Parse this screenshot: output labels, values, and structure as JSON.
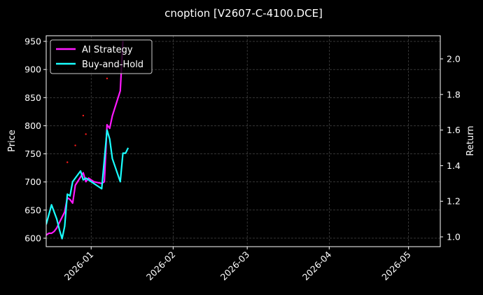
{
  "chart_data": {
    "type": "line",
    "title": "cnoption [V2607-C-4100.DCE]",
    "xlabel": "",
    "ylabel_left": "Price",
    "ylabel_right": "Return",
    "x_range": [
      "2025-12-15",
      "2026-05-13"
    ],
    "x_ticks": [
      "2026-01",
      "2026-02",
      "2026-03",
      "2026-04",
      "2026-05"
    ],
    "y_left": {
      "range": [
        585,
        960
      ],
      "ticks": [
        600,
        650,
        700,
        750,
        800,
        850,
        900,
        950
      ]
    },
    "y_right": {
      "range": [
        0.945,
        2.13
      ],
      "ticks": [
        1.0,
        1.2,
        1.4,
        1.6,
        1.8,
        2.0
      ]
    },
    "grid": true,
    "legend": "top-left",
    "series": [
      {
        "name": "AI Strategy",
        "axis": "right",
        "color": "#ff19ff",
        "points": [
          [
            "2025-12-15",
            1.01
          ],
          [
            "2025-12-16",
            1.02
          ],
          [
            "2025-12-17",
            1.02
          ],
          [
            "2025-12-18",
            1.03
          ],
          [
            "2025-12-19",
            1.05
          ],
          [
            "2025-12-22",
            1.14
          ],
          [
            "2025-12-23",
            1.22
          ],
          [
            "2025-12-24",
            1.21
          ],
          [
            "2025-12-25",
            1.19
          ],
          [
            "2025-12-26",
            1.29
          ],
          [
            "2025-12-29",
            1.36
          ],
          [
            "2025-12-30",
            1.31
          ],
          [
            "2025-12-31",
            1.33
          ],
          [
            "2026-01-02",
            1.31
          ],
          [
            "2026-01-05",
            1.3
          ],
          [
            "2026-01-06",
            1.31
          ],
          [
            "2026-01-07",
            1.63
          ],
          [
            "2026-01-08",
            1.61
          ],
          [
            "2026-01-09",
            1.68
          ],
          [
            "2026-01-12",
            1.82
          ],
          [
            "2026-01-13",
            2.1
          ]
        ]
      },
      {
        "name": "Buy-and-Hold",
        "axis": "right",
        "color": "#19ffff",
        "points": [
          [
            "2025-12-15",
            1.07
          ],
          [
            "2025-12-17",
            1.18
          ],
          [
            "2025-12-19",
            1.1
          ],
          [
            "2025-12-20",
            1.04
          ],
          [
            "2025-12-21",
            0.99
          ],
          [
            "2025-12-22",
            1.06
          ],
          [
            "2025-12-23",
            1.24
          ],
          [
            "2025-12-24",
            1.23
          ],
          [
            "2025-12-25",
            1.31
          ],
          [
            "2025-12-28",
            1.37
          ],
          [
            "2025-12-29",
            1.32
          ],
          [
            "2025-12-30",
            1.33
          ],
          [
            "2025-12-31",
            1.32
          ],
          [
            "2026-01-05",
            1.27
          ],
          [
            "2026-01-07",
            1.6
          ],
          [
            "2026-01-08",
            1.55
          ],
          [
            "2026-01-09",
            1.44
          ],
          [
            "2026-01-12",
            1.31
          ],
          [
            "2026-01-13",
            1.47
          ],
          [
            "2026-01-14",
            1.47
          ],
          [
            "2026-01-15",
            1.5
          ]
        ]
      },
      {
        "name": "",
        "type": "scatter",
        "axis": "left",
        "color": "#ff1a1a",
        "points": [
          [
            "2025-12-23",
            735
          ],
          [
            "2025-12-26",
            765
          ],
          [
            "2025-12-29",
            818
          ],
          [
            "2025-12-30",
            785
          ],
          [
            "2026-01-07",
            884
          ]
        ]
      }
    ]
  }
}
